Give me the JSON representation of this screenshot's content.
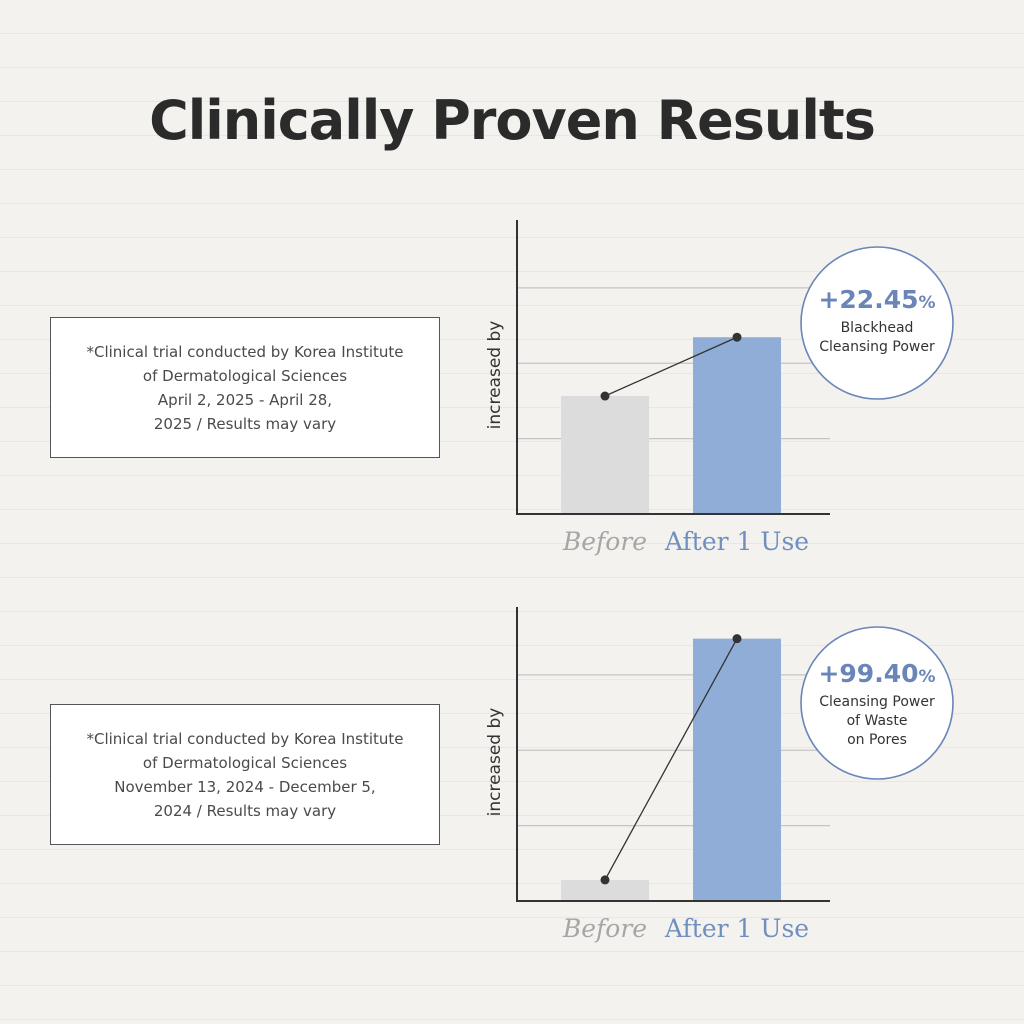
{
  "title": "Clinically Proven Results",
  "colors": {
    "before_bar": "#dcdcdc",
    "after_bar": "#8fadd6",
    "accent": "#6a86b9",
    "axis": "#333333",
    "grid": "#c4c4c4"
  },
  "chart_data": [
    {
      "type": "bar",
      "categories": [
        "Before",
        "After 1 Use"
      ],
      "values": [
        31.3,
        46.9
      ],
      "ylim": [
        0,
        78
      ],
      "gridlines": [
        20,
        40,
        60
      ],
      "ylabel": "increased by",
      "overlay_line": true,
      "badge": {
        "value": "+22.45",
        "unit": "%",
        "label": [
          "Blackhead",
          "Cleansing Power"
        ]
      },
      "note": [
        "*Clinical trial conducted by Korea Institute",
        "of Dermatological Sciences",
        "April 2, 2025 - April 28,",
        "2025 / Results may vary"
      ]
    },
    {
      "type": "bar",
      "categories": [
        "Before",
        "After 1 Use"
      ],
      "values": [
        5.6,
        69.6
      ],
      "ylim": [
        0,
        78
      ],
      "gridlines": [
        20,
        40,
        60
      ],
      "ylabel": "increased by",
      "overlay_line": true,
      "badge": {
        "value": "+99.40",
        "unit": "%",
        "label": [
          "Cleansing Power",
          "of Waste",
          "on Pores"
        ]
      },
      "note": [
        "*Clinical trial conducted by Korea Institute",
        "of Dermatological Sciences",
        "November 13, 2024 - December 5,",
        "2024 / Results may vary"
      ]
    }
  ]
}
